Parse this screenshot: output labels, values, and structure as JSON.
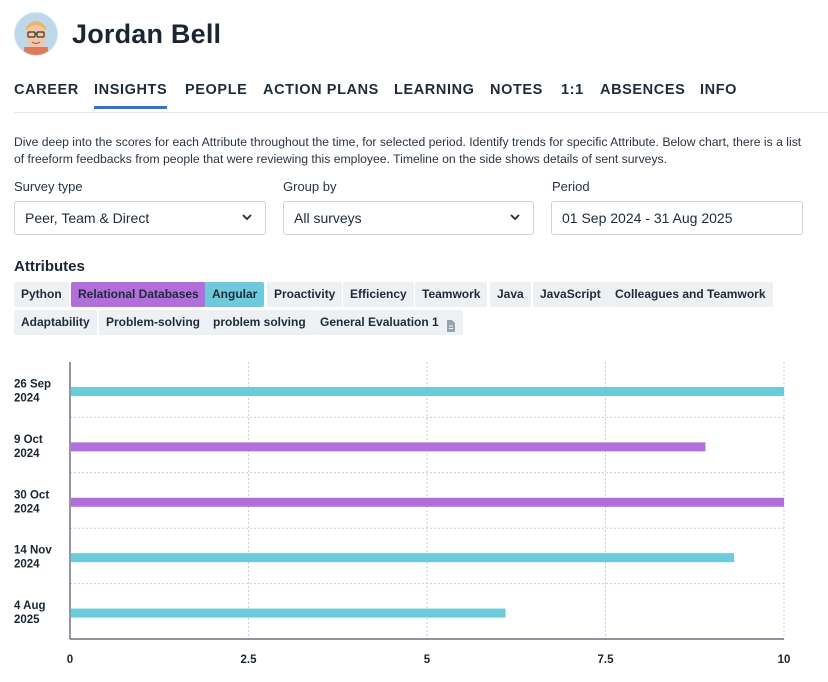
{
  "user": {
    "name": "Jordan Bell"
  },
  "tabs": [
    {
      "label": "CAREER"
    },
    {
      "label": "INSIGHTS",
      "active": true
    },
    {
      "label": "PEOPLE"
    },
    {
      "label": "ACTION PLANS"
    },
    {
      "label": "LEARNING"
    },
    {
      "label": "NOTES"
    },
    {
      "label": "1:1"
    },
    {
      "label": "ABSENCES"
    },
    {
      "label": "INFO"
    }
  ],
  "description": "Dive deep into the scores for each Attribute throughout the time, for selected period. Identify trends for specific Attribute. Below chart, there is a list of freeform feedbacks from people that were reviewing this employee. Timeline on the side shows details of sent surveys.",
  "filters": {
    "survey_type": {
      "label": "Survey type",
      "value": "Peer, Team & Direct"
    },
    "group_by": {
      "label": "Group by",
      "value": "All surveys"
    },
    "period": {
      "label": "Period",
      "value": "01 Sep 2024 - 31 Aug 2025"
    }
  },
  "attributes": {
    "title": "Attributes",
    "chips": [
      {
        "label": "Python"
      },
      {
        "label": "Relational Databases",
        "selected_color": "#b26fdc"
      },
      {
        "label": "Angular",
        "selected_color": "#6ccadb"
      },
      {
        "label": "Proactivity"
      },
      {
        "label": "Efficiency"
      },
      {
        "label": "Teamwork"
      },
      {
        "label": "Java"
      },
      {
        "label": "JavaScript"
      },
      {
        "label": "Colleagues and Teamwork"
      },
      {
        "label": "Adaptability"
      },
      {
        "label": "Problem-solving"
      },
      {
        "label": "problem solving"
      },
      {
        "label": "General Evaluation 1",
        "icon": "document-icon"
      }
    ]
  },
  "colors": {
    "accent": "#2f74d0",
    "purple": "#b26fdc",
    "teal": "#6ccadb"
  },
  "chart_data": {
    "type": "bar",
    "orientation": "horizontal",
    "categories": [
      [
        "26 Sep",
        "2024"
      ],
      [
        "9 Oct",
        "2024"
      ],
      [
        "30 Oct",
        "2024"
      ],
      [
        "14 Nov",
        "2024"
      ],
      [
        "4 Aug",
        "2025"
      ]
    ],
    "values": [
      10,
      8.9,
      10,
      9.3,
      6.1
    ],
    "bar_colors": [
      "#6ccadb",
      "#b26fdc",
      "#b26fdc",
      "#6ccadb",
      "#6ccadb"
    ],
    "xlim": [
      0,
      10
    ],
    "xticks": [
      "0",
      "2.5",
      "5",
      "7.5",
      "10"
    ],
    "tick_values": [
      0,
      2.5,
      5,
      7.5,
      10
    ],
    "grid": true
  }
}
